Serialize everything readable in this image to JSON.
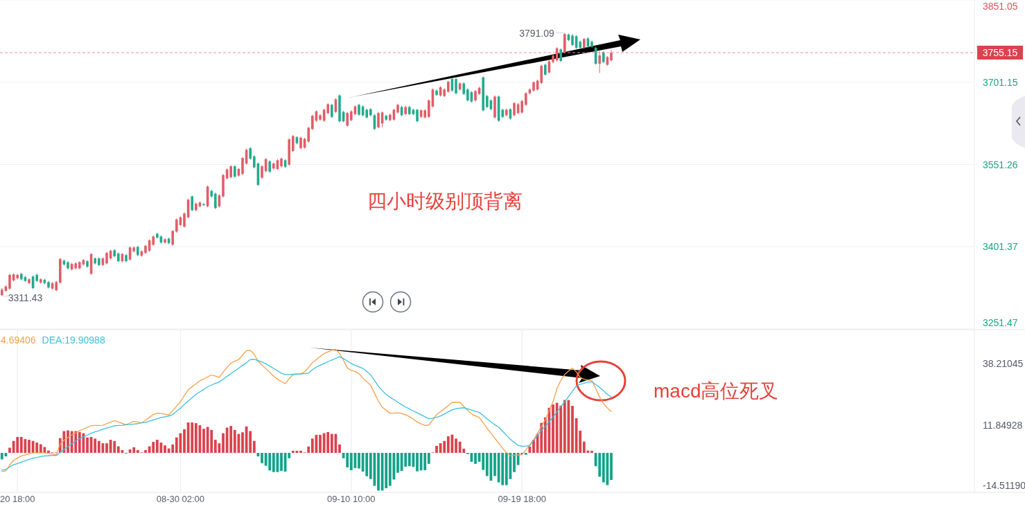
{
  "chart_data": [
    {
      "type": "candlestick",
      "categories": [
        null,
        null,
        null,
        null,
        null,
        null,
        null,
        null,
        null,
        null,
        null,
        null,
        null,
        null,
        null,
        null,
        null,
        null,
        null,
        null,
        null,
        null,
        null,
        null,
        null,
        null,
        null,
        null,
        null,
        null,
        null,
        null,
        null,
        null,
        null,
        null,
        null,
        null,
        null,
        null,
        null,
        null,
        null,
        null,
        null,
        null,
        null,
        null,
        null,
        null,
        null,
        null,
        null,
        null,
        null,
        null,
        null,
        null,
        null,
        null,
        null,
        null,
        null,
        null,
        null,
        null,
        null,
        null,
        null,
        null,
        null,
        null,
        null,
        null,
        null,
        null,
        null,
        null,
        null,
        null,
        null,
        null,
        null,
        null,
        null,
        null,
        null,
        null,
        null,
        null,
        null,
        null,
        null,
        null,
        null,
        null,
        null,
        null,
        null,
        null,
        null,
        null,
        null,
        null,
        null,
        null,
        null,
        null,
        null,
        null,
        null,
        null,
        null,
        null,
        null,
        null,
        null,
        null,
        null,
        null,
        null,
        null,
        null,
        null,
        null,
        null,
        null,
        null,
        null,
        null,
        null,
        null,
        null,
        null,
        null,
        null,
        null,
        null,
        null,
        null,
        null,
        null,
        null,
        null,
        null,
        null,
        null,
        null,
        null,
        null,
        null,
        null,
        null,
        null,
        null,
        null,
        null,
        null,
        null,
        null,
        null,
        null,
        null,
        null,
        null,
        null,
        null,
        null,
        null,
        null,
        null,
        null,
        null,
        null,
        null,
        null,
        null,
        null,
        null,
        null,
        null,
        null,
        null,
        null,
        null,
        null,
        null,
        null,
        null,
        null,
        null,
        null,
        null,
        null,
        null,
        null,
        null,
        null,
        null,
        null,
        null,
        null,
        null,
        null,
        null,
        null,
        null,
        null,
        null,
        null,
        null,
        null,
        null,
        null,
        null,
        null,
        null,
        null,
        null,
        null,
        null,
        null,
        null,
        null,
        null,
        null,
        null,
        null,
        null,
        null,
        null,
        null,
        null,
        null,
        null,
        null,
        null,
        null,
        null,
        null,
        null,
        null,
        null,
        null,
        null,
        null,
        null,
        null,
        null,
        null
      ],
      "ohlc": [
        [
          3313,
          3326,
          3311.43,
          3323
        ],
        [
          3321,
          3331,
          3319,
          3329
        ],
        [
          3325,
          3352,
          3323,
          3350
        ],
        [
          3340,
          3353,
          3338,
          3351
        ],
        [
          3344,
          3352,
          3342,
          3350
        ],
        [
          3352,
          3354,
          3340,
          3342
        ],
        [
          3346,
          3348,
          3337,
          3339
        ],
        [
          3335,
          3344,
          3333,
          3342
        ],
        [
          3347,
          3349,
          3324,
          3326
        ],
        [
          3350,
          3352,
          3337,
          3339
        ],
        [
          3336,
          3344,
          3334,
          3342
        ],
        [
          3341,
          3343,
          3333,
          3335
        ],
        [
          3337,
          3339,
          3325,
          3327
        ],
        [
          3325,
          3337,
          3323,
          3335
        ],
        [
          3322,
          3339,
          3320,
          3337
        ],
        [
          3336,
          3381,
          3334,
          3379
        ],
        [
          3376,
          3378,
          3367,
          3369
        ],
        [
          3373,
          3375,
          3360,
          3362
        ],
        [
          3360,
          3372,
          3358,
          3370
        ],
        [
          3362,
          3373,
          3360,
          3371
        ],
        [
          3362,
          3375,
          3360,
          3373
        ],
        [
          3369,
          3379,
          3367,
          3377
        ],
        [
          3375,
          3377,
          3363,
          3365
        ],
        [
          3352,
          3390,
          3350,
          3388
        ],
        [
          3380,
          3382,
          3369,
          3371
        ],
        [
          3380,
          3382,
          3366,
          3368
        ],
        [
          3368,
          3382,
          3366,
          3380
        ],
        [
          3371,
          3392,
          3369,
          3390
        ],
        [
          3380,
          3396,
          3378,
          3394
        ],
        [
          3395,
          3397,
          3382,
          3384
        ],
        [
          3389,
          3391,
          3373,
          3375
        ],
        [
          3375,
          3390,
          3373,
          3388
        ],
        [
          3386,
          3388,
          3373,
          3375
        ],
        [
          3378,
          3402,
          3376,
          3400
        ],
        [
          3393,
          3402,
          3391,
          3400
        ],
        [
          3401,
          3403,
          3384,
          3386
        ],
        [
          3385,
          3395,
          3383,
          3393
        ],
        [
          3390,
          3405,
          3388,
          3403
        ],
        [
          3394,
          3415,
          3392,
          3413
        ],
        [
          3405,
          3422,
          3403,
          3420
        ],
        [
          3425,
          3427,
          3416,
          3418
        ],
        [
          3420,
          3422,
          3407,
          3409
        ],
        [
          3409,
          3417,
          3407,
          3415
        ],
        [
          3416,
          3418,
          3406,
          3408
        ],
        [
          3405,
          3432,
          3403,
          3430
        ],
        [
          3429,
          3453,
          3427,
          3451
        ],
        [
          3441,
          3457,
          3439,
          3455
        ],
        [
          3438,
          3464,
          3436,
          3462
        ],
        [
          3455,
          3489,
          3453,
          3487
        ],
        [
          3493,
          3495,
          3466,
          3468
        ],
        [
          3468,
          3482,
          3466,
          3480
        ],
        [
          3475,
          3484,
          3473,
          3482
        ],
        [
          3479,
          3481,
          3476,
          3478
        ],
        [
          3475,
          3513,
          3473,
          3511
        ],
        [
          3503,
          3505,
          3491,
          3493
        ],
        [
          3498,
          3500,
          3470,
          3472
        ],
        [
          3475,
          3497,
          3473,
          3495
        ],
        [
          3493,
          3534,
          3491,
          3532
        ],
        [
          3526,
          3544,
          3524,
          3542
        ],
        [
          3528,
          3550,
          3526,
          3548
        ],
        [
          3548,
          3550,
          3527,
          3529
        ],
        [
          3531,
          3545,
          3529,
          3543
        ],
        [
          3534,
          3565,
          3532,
          3563
        ],
        [
          3553,
          3580,
          3551,
          3578
        ],
        [
          3581,
          3583,
          3560,
          3562
        ],
        [
          3566,
          3568,
          3544,
          3546
        ],
        [
          3553,
          3555,
          3512,
          3514
        ],
        [
          3527,
          3550,
          3525,
          3548
        ],
        [
          3539,
          3563,
          3537,
          3561
        ],
        [
          3557,
          3559,
          3536,
          3538
        ],
        [
          3544,
          3555,
          3542,
          3553
        ],
        [
          3543,
          3561,
          3541,
          3559
        ],
        [
          3548,
          3564,
          3546,
          3562
        ],
        [
          3559,
          3561,
          3545,
          3547
        ],
        [
          3551,
          3599,
          3549,
          3597
        ],
        [
          3576,
          3605,
          3574,
          3603
        ],
        [
          3601,
          3603,
          3588,
          3590
        ],
        [
          3581,
          3602,
          3579,
          3600
        ],
        [
          3582,
          3600,
          3580,
          3598
        ],
        [
          3593,
          3620,
          3591,
          3618
        ],
        [
          3616,
          3642,
          3614,
          3640
        ],
        [
          3631,
          3650,
          3629,
          3648
        ],
        [
          3633,
          3643,
          3631,
          3641
        ],
        [
          3631,
          3653,
          3629,
          3651
        ],
        [
          3645,
          3663,
          3643,
          3661
        ],
        [
          3660,
          3662,
          3636,
          3638
        ],
        [
          3647,
          3672,
          3645,
          3670
        ],
        [
          3677,
          3679,
          3628,
          3630
        ],
        [
          3647,
          3649,
          3628,
          3630
        ],
        [
          3622,
          3647,
          3620,
          3645
        ],
        [
          3632,
          3650,
          3630,
          3648
        ],
        [
          3643,
          3659,
          3641,
          3657
        ],
        [
          3660,
          3662,
          3640,
          3642
        ],
        [
          3657,
          3659,
          3639,
          3641
        ],
        [
          3651,
          3653,
          3635,
          3637
        ],
        [
          3652,
          3654,
          3639,
          3641
        ],
        [
          3641,
          3643,
          3614,
          3616
        ],
        [
          3619,
          3647,
          3617,
          3645
        ],
        [
          3626,
          3648,
          3619,
          3646
        ],
        [
          3640,
          3642,
          3631,
          3633
        ],
        [
          3632,
          3644,
          3630,
          3642
        ],
        [
          3633,
          3653,
          3631,
          3651
        ],
        [
          3646,
          3662,
          3644,
          3660
        ],
        [
          3656,
          3658,
          3639,
          3641
        ],
        [
          3643,
          3658,
          3641,
          3656
        ],
        [
          3656,
          3658,
          3641,
          3643
        ],
        [
          3651,
          3653,
          3641,
          3643
        ],
        [
          3651,
          3653,
          3628,
          3630
        ],
        [
          3638,
          3652,
          3636,
          3650
        ],
        [
          3637,
          3652,
          3635,
          3650
        ],
        [
          3638,
          3670,
          3636,
          3668
        ],
        [
          3657,
          3690,
          3655,
          3688
        ],
        [
          3686,
          3688,
          3676,
          3678
        ],
        [
          3677,
          3694,
          3675,
          3692
        ],
        [
          3676,
          3690,
          3674,
          3688
        ],
        [
          3684,
          3704,
          3682,
          3702
        ],
        [
          3707,
          3709,
          3684,
          3686
        ],
        [
          3707,
          3709,
          3679,
          3681
        ],
        [
          3688,
          3701,
          3686,
          3699
        ],
        [
          3699,
          3701,
          3678,
          3680
        ],
        [
          3688,
          3690,
          3666,
          3668
        ],
        [
          3683,
          3685,
          3664,
          3666
        ],
        [
          3668,
          3687,
          3666,
          3685
        ],
        [
          3680,
          3693,
          3678,
          3691
        ],
        [
          3710,
          3712,
          3648,
          3650
        ],
        [
          3676,
          3678,
          3654,
          3656
        ],
        [
          3668,
          3670,
          3650,
          3652
        ],
        [
          3637,
          3677,
          3635,
          3675
        ],
        [
          3675,
          3677,
          3629,
          3631
        ],
        [
          3651,
          3653,
          3636,
          3638
        ],
        [
          3641,
          3653,
          3639,
          3651
        ],
        [
          3652,
          3654,
          3633,
          3635
        ],
        [
          3641,
          3665,
          3639,
          3663
        ],
        [
          3645,
          3663,
          3643,
          3661
        ],
        [
          3646,
          3669,
          3644,
          3667
        ],
        [
          3660,
          3683,
          3658,
          3681
        ],
        [
          3681,
          3690,
          3679,
          3688
        ],
        [
          3686,
          3703,
          3684,
          3701
        ],
        [
          3688,
          3706,
          3686,
          3704
        ],
        [
          3700,
          3733,
          3698,
          3731
        ],
        [
          3733,
          3735,
          3713,
          3715
        ],
        [
          3719,
          3741,
          3717,
          3739
        ],
        [
          3738,
          3752,
          3736,
          3750
        ],
        [
          3741,
          3765,
          3739,
          3763
        ],
        [
          3761,
          3763,
          3738,
          3740
        ],
        [
          3756,
          3791.09,
          3754,
          3789
        ],
        [
          3788,
          3790,
          3776,
          3778
        ],
        [
          3786,
          3789,
          3767,
          3769
        ],
        [
          3785,
          3787,
          3762,
          3764
        ],
        [
          3775,
          3777,
          3762,
          3764
        ],
        [
          3764,
          3782,
          3762,
          3780
        ],
        [
          3781,
          3783,
          3764,
          3766
        ],
        [
          3775,
          3777,
          3764,
          3766
        ],
        [
          3764,
          3766,
          3733,
          3735
        ],
        [
          3735,
          3758,
          3718,
          3750
        ],
        [
          3756,
          3758,
          3736,
          3738
        ],
        [
          3733,
          3749,
          3731,
          3747
        ],
        [
          3741,
          3760,
          3739,
          3755.15
        ],
        null,
        null,
        null,
        null,
        null,
        null,
        null,
        null,
        null,
        null,
        null,
        null,
        null,
        null,
        null,
        null,
        null,
        null,
        null,
        null,
        null,
        null,
        null,
        null,
        null,
        null,
        null,
        null,
        null,
        null,
        null,
        null,
        null,
        null,
        null,
        null,
        null,
        null,
        null,
        null,
        null,
        null,
        null,
        null,
        null,
        null,
        null,
        null,
        null,
        null,
        null,
        null,
        null,
        null,
        null,
        null,
        null,
        null,
        null,
        null,
        null,
        null,
        null,
        null,
        null,
        null,
        null,
        null,
        null,
        null,
        null,
        null,
        null,
        null,
        null,
        null,
        null,
        null,
        null,
        null,
        null,
        null,
        null,
        null,
        null,
        null,
        null,
        null,
        null,
        null,
        null,
        null
      ],
      "colors": [
        "#e25d69",
        "#e25d69",
        "#e25d69",
        "#e25d69",
        "#e25d69",
        "#22ab8c",
        "#22ab8c",
        "#e25d69",
        "#22ab8c",
        "#22ab8c",
        "#e25d69",
        "#22ab8c",
        "#22ab8c",
        "#e25d69",
        "#e25d69",
        "#e25d69",
        "#22ab8c",
        "#22ab8c",
        "#e25d69",
        "#e25d69",
        "#e25d69",
        "#e25d69",
        "#22ab8c",
        "#e25d69",
        "#22ab8c",
        "#22ab8c",
        "#e25d69",
        "#e25d69",
        "#e25d69",
        "#22ab8c",
        "#22ab8c",
        "#e25d69",
        "#22ab8c",
        "#e25d69",
        "#e25d69",
        "#22ab8c",
        "#e25d69",
        "#e25d69",
        "#e25d69",
        "#e25d69",
        "#22ab8c",
        "#22ab8c",
        "#e25d69",
        "#22ab8c",
        "#e25d69",
        "#e25d69",
        "#e25d69",
        "#e25d69",
        "#e25d69",
        "#22ab8c",
        "#e25d69",
        "#e25d69",
        "#22ab8c",
        "#e25d69",
        "#22ab8c",
        "#22ab8c",
        "#e25d69",
        "#e25d69",
        "#e25d69",
        "#e25d69",
        "#22ab8c",
        "#e25d69",
        "#e25d69",
        "#e25d69",
        "#22ab8c",
        "#22ab8c",
        "#22ab8c",
        "#e25d69",
        "#e25d69",
        "#22ab8c",
        "#e25d69",
        "#e25d69",
        "#e25d69",
        "#22ab8c",
        "#e25d69",
        "#e25d69",
        "#22ab8c",
        "#e25d69",
        "#e25d69",
        "#e25d69",
        "#e25d69",
        "#e25d69",
        "#e25d69",
        "#e25d69",
        "#e25d69",
        "#22ab8c",
        "#e25d69",
        "#22ab8c",
        "#22ab8c",
        "#e25d69",
        "#e25d69",
        "#e25d69",
        "#22ab8c",
        "#22ab8c",
        "#22ab8c",
        "#22ab8c",
        "#22ab8c",
        "#e25d69",
        "#e25d69",
        "#22ab8c",
        "#e25d69",
        "#e25d69",
        "#e25d69",
        "#22ab8c",
        "#e25d69",
        "#22ab8c",
        "#22ab8c",
        "#22ab8c",
        "#e25d69",
        "#e25d69",
        "#e25d69",
        "#e25d69",
        "#22ab8c",
        "#e25d69",
        "#e25d69",
        "#e25d69",
        "#22ab8c",
        "#22ab8c",
        "#e25d69",
        "#22ab8c",
        "#22ab8c",
        "#22ab8c",
        "#e25d69",
        "#e25d69",
        "#22ab8c",
        "#22ab8c",
        "#22ab8c",
        "#e25d69",
        "#22ab8c",
        "#22ab8c",
        "#e25d69",
        "#22ab8c",
        "#e25d69",
        "#e25d69",
        "#e25d69",
        "#e25d69",
        "#e25d69",
        "#e25d69",
        "#e25d69",
        "#e25d69",
        "#22ab8c",
        "#e25d69",
        "#e25d69",
        "#e25d69",
        "#22ab8c",
        "#e25d69",
        "#22ab8c",
        "#22ab8c",
        "#22ab8c",
        "#22ab8c",
        "#e25d69",
        "#22ab8c",
        "#22ab8c",
        "#22ab8c",
        "#e25d69",
        "#22ab8c",
        "#e25d69",
        "#e25d69",
        null,
        null,
        null,
        null,
        null,
        null,
        null,
        null,
        null,
        null,
        null,
        null,
        null,
        null,
        null,
        null,
        null,
        null,
        null,
        null,
        null,
        null,
        null,
        null,
        null,
        null,
        null,
        null,
        null,
        null,
        null,
        null,
        null,
        null,
        null,
        null,
        null,
        null,
        null,
        null,
        null,
        null,
        null,
        null,
        null,
        null,
        null,
        null,
        null,
        null,
        null,
        null,
        null,
        null,
        null,
        null,
        null,
        null,
        null,
        null,
        null,
        null,
        null,
        null,
        null,
        null,
        null,
        null,
        null,
        null,
        null,
        null,
        null,
        null,
        null,
        null,
        null,
        null,
        null,
        null,
        null,
        null,
        null,
        null,
        null,
        null,
        null,
        null,
        null,
        null,
        null,
        null
      ],
      "ylim": [
        3251.47,
        3851.05
      ],
      "yticks": [
        3251.47,
        3401.37,
        3551.26,
        3701.15,
        3851.05
      ],
      "grid": true,
      "tick_labels": "y",
      "ref_lines": [
        {
          "axis": "y",
          "value": 3755.15,
          "label": "3755.15",
          "color": "#f08aa0",
          "line_style": "dashed"
        }
      ],
      "annotations": [
        "3791.09",
        "3311.43",
        "四小时级别顶背离"
      ]
    },
    {
      "type": "bar",
      "categories": [
        null,
        null,
        null,
        null,
        "20 18:00",
        null,
        null,
        null,
        null,
        null,
        null,
        null,
        null,
        null,
        null,
        null,
        null,
        null,
        null,
        null,
        null,
        null,
        null,
        null,
        null,
        null,
        null,
        null,
        null,
        null,
        null,
        null,
        null,
        null,
        null,
        null,
        null,
        null,
        null,
        null,
        null,
        null,
        null,
        null,
        null,
        null,
        "08-30 02:00",
        null,
        null,
        null,
        null,
        null,
        null,
        null,
        null,
        null,
        null,
        null,
        null,
        null,
        null,
        null,
        null,
        null,
        null,
        null,
        null,
        null,
        null,
        null,
        null,
        null,
        null,
        null,
        null,
        null,
        null,
        null,
        null,
        null,
        null,
        null,
        null,
        null,
        null,
        null,
        null,
        null,
        null,
        null,
        "09-10 10:00",
        null,
        null,
        null,
        null,
        null,
        null,
        null,
        null,
        null,
        null,
        null,
        null,
        null,
        null,
        null,
        null,
        null,
        null,
        null,
        null,
        null,
        null,
        null,
        null,
        null,
        null,
        null,
        null,
        null,
        null,
        null,
        null,
        null,
        null,
        null,
        null,
        null,
        null,
        null,
        null,
        null,
        null,
        null,
        "09-19 18:00",
        null,
        null,
        null,
        null,
        null,
        null,
        null,
        null,
        null,
        null,
        null,
        null,
        null,
        null,
        null,
        null,
        null,
        null,
        null,
        null,
        null,
        null,
        null
      ],
      "series": [
        {
          "type": "bar",
          "values": [
            -2.8,
            -1.5,
            2.2,
            5.1,
            6.8,
            6.8,
            5.9,
            5.6,
            5.1,
            4.4,
            3.7,
            2.5,
            1.0,
            0.2,
            0.2,
            6.3,
            9.3,
            9.6,
            9.3,
            9.3,
            8.9,
            8.4,
            6.6,
            6.8,
            6.1,
            5.1,
            4.1,
            4.1,
            5.6,
            5.1,
            2.8,
            1.2,
            -0.3,
            1.5,
            2.4,
            1.2,
            0.2,
            1.2,
            2.8,
            4.7,
            5.6,
            4.4,
            3.2,
            1.9,
            3.6,
            6.6,
            8.4,
            10.1,
            13.0,
            13.0,
            12.7,
            11.8,
            10.3,
            11.1,
            9.8,
            5.6,
            4.1,
            8.4,
            10.8,
            11.5,
            9.8,
            8.1,
            8.8,
            11.3,
            9.3,
            5.1,
            -1.5,
            -4.4,
            -5.5,
            -7.5,
            -8.2,
            -8.2,
            -7.7,
            -8.0,
            -2.3,
            0.9,
            0.9,
            0.9,
            0.2,
            2.7,
            6.1,
            7.7,
            7.7,
            8.4,
            8.9,
            8.1,
            8.1,
            3.6,
            -2.3,
            -6.2,
            -7.4,
            -6.5,
            -6.7,
            -8.0,
            -10.0,
            -11.2,
            -14.1,
            -16.1,
            -16.1,
            -15.1,
            -14.1,
            -11.4,
            -8.5,
            -7.7,
            -5.9,
            -5.7,
            -6.0,
            -7.9,
            -7.5,
            -7.4,
            -4.7,
            0.2,
            3.0,
            4.1,
            5.1,
            7.1,
            7.8,
            6.1,
            4.8,
            1.8,
            -0.5,
            -3.8,
            -4.7,
            -3.8,
            -7.3,
            -9.9,
            -11.9,
            -9.9,
            -12.6,
            -13.8,
            -13.8,
            -11.2,
            -8.2,
            -5.2,
            -0.6,
            -0.8,
            2.7,
            5.6,
            8.1,
            12.8,
            15.2,
            19.3,
            20.7,
            21.4,
            20.2,
            22.6,
            22.6,
            20.1,
            14.8,
            9.5,
            4.8,
            1.0,
            0.9,
            -5.7,
            -10.2,
            -12.6,
            -13.8,
            -11.6
          ],
          "colors": [
            "#12a389",
            "#12a389",
            "#d9434e",
            "#d9434e",
            "#d9434e",
            "#d9434e",
            "#d9434e",
            "#d9434e",
            "#d9434e",
            "#d9434e",
            "#d9434e",
            "#d9434e",
            "#d9434e",
            "#d9434e",
            "#d9434e",
            "#d9434e",
            "#d9434e",
            "#d9434e",
            "#d9434e",
            "#d9434e",
            "#d9434e",
            "#d9434e",
            "#d9434e",
            "#d9434e",
            "#d9434e",
            "#d9434e",
            "#d9434e",
            "#d9434e",
            "#d9434e",
            "#d9434e",
            "#d9434e",
            "#d9434e",
            "#12a389",
            "#d9434e",
            "#d9434e",
            "#d9434e",
            "#d9434e",
            "#d9434e",
            "#d9434e",
            "#d9434e",
            "#d9434e",
            "#d9434e",
            "#d9434e",
            "#d9434e",
            "#d9434e",
            "#d9434e",
            "#d9434e",
            "#d9434e",
            "#d9434e",
            "#d9434e",
            "#d9434e",
            "#d9434e",
            "#d9434e",
            "#d9434e",
            "#d9434e",
            "#d9434e",
            "#d9434e",
            "#d9434e",
            "#d9434e",
            "#d9434e",
            "#d9434e",
            "#d9434e",
            "#d9434e",
            "#d9434e",
            "#d9434e",
            "#d9434e",
            "#12a389",
            "#12a389",
            "#12a389",
            "#12a389",
            "#12a389",
            "#12a389",
            "#12a389",
            "#12a389",
            "#12a389",
            "#d9434e",
            "#d9434e",
            "#d9434e",
            "#d9434e",
            "#d9434e",
            "#d9434e",
            "#d9434e",
            "#d9434e",
            "#d9434e",
            "#d9434e",
            "#d9434e",
            "#d9434e",
            "#d9434e",
            "#12a389",
            "#12a389",
            "#12a389",
            "#12a389",
            "#12a389",
            "#12a389",
            "#12a389",
            "#12a389",
            "#12a389",
            "#12a389",
            "#12a389",
            "#12a389",
            "#12a389",
            "#12a389",
            "#12a389",
            "#12a389",
            "#12a389",
            "#12a389",
            "#12a389",
            "#12a389",
            "#12a389",
            "#12a389",
            "#12a389",
            "#d9434e",
            "#d9434e",
            "#d9434e",
            "#d9434e",
            "#d9434e",
            "#d9434e",
            "#d9434e",
            "#d9434e",
            "#d9434e",
            "#12a389",
            "#12a389",
            "#12a389",
            "#12a389",
            "#12a389",
            "#12a389",
            "#12a389",
            "#12a389",
            "#12a389",
            "#12a389",
            "#12a389",
            "#12a389",
            "#12a389",
            "#12a389",
            "#12a389",
            "#12a389",
            "#d9434e",
            "#d9434e",
            "#d9434e",
            "#d9434e",
            "#d9434e",
            "#d9434e",
            "#d9434e",
            "#d9434e",
            "#d9434e",
            "#d9434e",
            "#d9434e",
            "#d9434e",
            "#d9434e",
            "#d9434e",
            "#d9434e",
            "#d9434e",
            "#d9434e",
            "#12a389",
            "#12a389",
            "#12a389",
            "#12a389",
            "#12a389"
          ]
        },
        {
          "type": "line",
          "name": "4.69406",
          "color": "#f5a04a",
          "values": [
            -8.0,
            -7.7,
            -5.2,
            -3.2,
            -2.2,
            -1.3,
            -0.9,
            -0.4,
            0.0,
            0.0,
            0.0,
            0.0,
            -0.3,
            -0.5,
            -0.8,
            3.8,
            5.4,
            6.6,
            7.6,
            8.5,
            9.5,
            10.2,
            10.9,
            11.6,
            11.7,
            11.7,
            11.8,
            12.5,
            13.1,
            13.8,
            13.2,
            12.6,
            12.0,
            12.8,
            13.5,
            13.2,
            12.8,
            14.0,
            15.2,
            16.4,
            17.0,
            16.8,
            16.5,
            16.2,
            18.1,
            20.0,
            21.9,
            24.5,
            27.0,
            28.3,
            29.5,
            30.8,
            31.6,
            32.5,
            33.3,
            32.8,
            32.3,
            34.5,
            36.6,
            38.4,
            39.2,
            39.9,
            41.8,
            43.7,
            43.8,
            42.2,
            39.2,
            37.5,
            36.0,
            34.5,
            32.8,
            31.5,
            30.5,
            29.6,
            31.8,
            33.4,
            33.8,
            33.7,
            34.8,
            36.5,
            38.6,
            39.9,
            41.2,
            42.5,
            43.2,
            43.9,
            44.2,
            42.5,
            39.6,
            36.3,
            35.3,
            34.8,
            33.8,
            32.0,
            30.4,
            28.9,
            25.5,
            22.2,
            19.5,
            18.2,
            16.9,
            17.0,
            17.1,
            16.8,
            16.3,
            15.5,
            14.4,
            13.2,
            12.4,
            11.7,
            11.9,
            14.0,
            16.4,
            17.6,
            18.9,
            20.2,
            21.6,
            21.6,
            21.6,
            19.9,
            18.2,
            16.6,
            15.8,
            15.1,
            12.8,
            10.5,
            8.4,
            6.3,
            4.1,
            2.0,
            0.1,
            -1.3,
            -1.1,
            -0.9,
            -0.8,
            1.3,
            3.5,
            5.6,
            8.4,
            11.3,
            14.1,
            18.0,
            21.9,
            27.5,
            31.0,
            33.5,
            35.0,
            36.3,
            34.6,
            32.2,
            31.5,
            31.1,
            30.9,
            27.5,
            23.8,
            21.0,
            19.2,
            17.7
          ]
        },
        {
          "type": "line",
          "name": "DEA:19.90988",
          "color": "#3bbfdc",
          "values": [
            -7.4,
            -7.1,
            -6.0,
            -5.1,
            -4.6,
            -4.0,
            -3.4,
            -2.8,
            -2.3,
            -2.0,
            -1.6,
            -1.3,
            -1.2,
            -1.1,
            -1.1,
            0.2,
            1.5,
            2.7,
            3.8,
            5.0,
            6.1,
            6.9,
            7.6,
            8.4,
            9.0,
            9.5,
            10.1,
            10.6,
            11.1,
            11.6,
            11.7,
            11.8,
            12.0,
            12.1,
            12.3,
            12.5,
            12.8,
            13.0,
            13.6,
            14.1,
            14.6,
            15.1,
            15.4,
            15.7,
            16.4,
            17.8,
            19.1,
            20.7,
            22.2,
            23.6,
            25.0,
            26.1,
            27.1,
            28.2,
            29.0,
            29.7,
            30.3,
            31.5,
            32.7,
            33.9,
            35.0,
            36.2,
            37.4,
            38.6,
            39.9,
            40.0,
            39.5,
            38.9,
            38.1,
            37.1,
            36.1,
            35.1,
            34.0,
            33.5,
            33.5,
            33.6,
            33.7,
            33.7,
            33.9,
            34.1,
            35.6,
            36.7,
            37.5,
            38.2,
            39.0,
            39.7,
            40.4,
            41.1,
            40.3,
            39.3,
            38.2,
            37.5,
            36.8,
            36.1,
            34.8,
            33.4,
            31.0,
            28.5,
            26.6,
            25.0,
            23.8,
            22.8,
            21.7,
            20.6,
            19.6,
            18.8,
            17.9,
            17.1,
            16.3,
            15.4,
            14.6,
            14.8,
            15.2,
            15.8,
            16.6,
            17.5,
            18.4,
            18.9,
            19.1,
            19.3,
            18.8,
            18.3,
            17.8,
            17.3,
            16.0,
            14.6,
            13.3,
            12.0,
            11.0,
            9.3,
            7.5,
            5.8,
            4.5,
            3.2,
            2.8,
            2.9,
            3.1,
            5.3,
            7.5,
            9.7,
            11.3,
            13.3,
            15.3,
            17.5,
            19.7,
            21.9,
            24.1,
            26.4,
            28.6,
            29.3,
            29.8,
            30.3,
            30.4,
            29.2,
            28.0,
            26.6,
            25.0,
            23.9
          ]
        }
      ],
      "ylim": [
        -16.6,
        52.4
      ],
      "yticks": [
        {
          "value": -14.5119,
          "label": "-14.51190"
        },
        11.84928,
        38.21045
      ],
      "grid": "x",
      "legend": "top left",
      "annotations": [
        "macd高位死叉"
      ]
    }
  ]
}
